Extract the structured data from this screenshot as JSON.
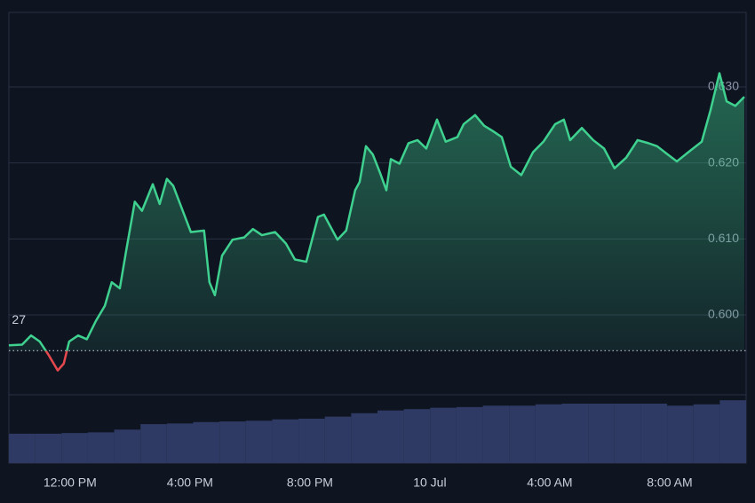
{
  "chart_data": {
    "type": "line",
    "x": [
      -2.04,
      -1.6,
      -1.3,
      -1.01,
      -0.71,
      -0.41,
      -0.21,
      -0.03,
      0.27,
      0.56,
      0.86,
      1.16,
      1.39,
      1.66,
      1.87,
      2.16,
      2.4,
      2.76,
      2.99,
      3.23,
      3.44,
      3.73,
      4.03,
      4.47,
      4.65,
      4.83,
      5.07,
      5.42,
      5.81,
      6.1,
      6.4,
      6.84,
      7.2,
      7.5,
      7.88,
      8.27,
      8.47,
      8.92,
      9.21,
      9.51,
      9.66,
      9.87,
      10.1,
      10.34,
      10.55,
      10.7,
      10.99,
      11.29,
      11.59,
      11.88,
      12.24,
      12.53,
      12.92,
      13.13,
      13.51,
      13.81,
      14.1,
      14.4,
      14.7,
      15.05,
      15.44,
      15.79,
      16.18,
      16.47,
      16.68,
      17.07,
      17.45,
      17.81,
      18.16,
      18.55,
      18.93,
      19.29,
      19.58,
      19.94,
      20.24,
      20.62,
      21.07,
      21.36,
      21.66,
      21.9,
      22.19,
      22.49
    ],
    "series": [
      {
        "color": "#3fd18f",
        "negative_color": "#e5484d",
        "values": [
          0.596,
          0.5961,
          0.5973,
          0.5965,
          0.5947,
          0.5927,
          0.5936,
          0.5965,
          0.5973,
          0.5968,
          0.5992,
          0.6012,
          0.6043,
          0.6035,
          0.6084,
          0.6149,
          0.6137,
          0.6172,
          0.6146,
          0.6179,
          0.617,
          0.614,
          0.6109,
          0.6111,
          0.6043,
          0.6026,
          0.6078,
          0.6099,
          0.6102,
          0.6113,
          0.6105,
          0.6109,
          0.6094,
          0.6073,
          0.607,
          0.6129,
          0.6132,
          0.6099,
          0.6111,
          0.6164,
          0.6175,
          0.6222,
          0.6211,
          0.6187,
          0.6164,
          0.6205,
          0.6199,
          0.6226,
          0.623,
          0.6219,
          0.6257,
          0.6228,
          0.6234,
          0.6251,
          0.6263,
          0.6249,
          0.6242,
          0.6234,
          0.6195,
          0.6184,
          0.6214,
          0.6228,
          0.6251,
          0.6257,
          0.623,
          0.6246,
          0.623,
          0.6219,
          0.6193,
          0.6207,
          0.623,
          0.6226,
          0.6222,
          0.6211,
          0.6202,
          0.6214,
          0.6228,
          0.6269,
          0.6318,
          0.6281,
          0.6275,
          0.6287
        ]
      }
    ],
    "baseline": 0.5953,
    "annotations": [
      "27"
    ],
    "xlim": [
      -2.04,
      22.55
    ],
    "xticks": [
      {
        "value": 0,
        "label": "12:00 PM"
      },
      {
        "value": 4,
        "label": "4:00 PM"
      },
      {
        "value": 8,
        "label": "8:00 PM"
      },
      {
        "value": 12,
        "label": "10 Jul"
      },
      {
        "value": 16,
        "label": "4:00 AM"
      },
      {
        "value": 20,
        "label": "8:00 AM"
      }
    ],
    "ylim": [
      0.5895,
      0.6398
    ],
    "yticks": [
      {
        "value": 0.6,
        "label": "0.600"
      },
      {
        "value": 0.61,
        "label": "0.610"
      },
      {
        "value": 0.62,
        "label": "0.620"
      },
      {
        "value": 0.63,
        "label": "0.630"
      }
    ],
    "grid": true,
    "volume": {
      "color": "#2e3a63",
      "ylim": [
        0,
        100
      ],
      "values": [
        43,
        43,
        44,
        45,
        49,
        57,
        58,
        60,
        61,
        62,
        64,
        65,
        68,
        73,
        77,
        79,
        81,
        82,
        84,
        84,
        86,
        87,
        87,
        87,
        87,
        84,
        86,
        92
      ]
    }
  }
}
